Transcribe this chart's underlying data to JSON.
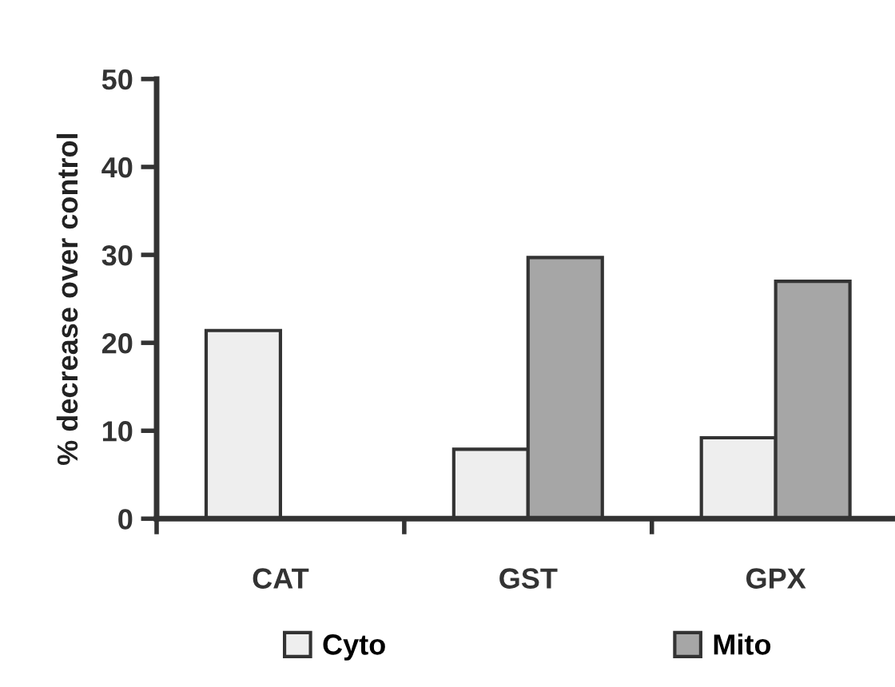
{
  "chart_data": {
    "type": "bar",
    "ylabel": "% decrease over control",
    "categories": [
      "CAT",
      "GST",
      "GPX"
    ],
    "series": [
      {
        "name": "Cyto",
        "color": "#eeeeee",
        "values": [
          21.4,
          7.9,
          9.2
        ]
      },
      {
        "name": "Mito",
        "color": "#a6a6a6",
        "values": [
          null,
          29.7,
          27.0
        ]
      }
    ],
    "ylim": [
      0,
      50
    ],
    "yticks": [
      0,
      10,
      20,
      30,
      40,
      50
    ],
    "grid": false,
    "legend": "bottom"
  }
}
